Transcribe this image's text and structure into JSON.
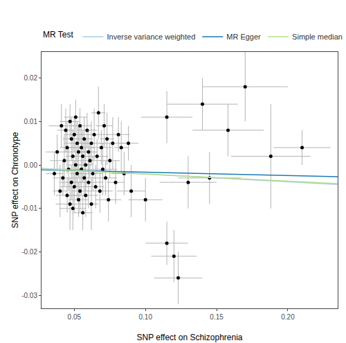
{
  "chart_data": {
    "type": "scatter",
    "x_label": "SNP effect on Schizophrenia",
    "y_label": "SNP effect on Chronotype",
    "legend_title": "MR Test",
    "legend": "top",
    "grid": false,
    "xlim": [
      0.027,
      0.235
    ],
    "ylim": [
      -0.033,
      0.026
    ],
    "xticks": [
      0.05,
      {
        "value": 0.1,
        "label": "0.10"
      },
      0.15,
      {
        "value": 0.2,
        "label": "0.20"
      }
    ],
    "yticks": [
      -0.03,
      -0.02,
      -0.01,
      {
        "value": 0,
        "label": "0.00"
      },
      0.01,
      0.02
    ],
    "series": [
      {
        "type": "scatter",
        "marker": "circle",
        "color": "#000000",
        "error_color": "#b3b3b3",
        "x": [
          0.036,
          0.038,
          0.04,
          0.041,
          0.042,
          0.043,
          0.044,
          0.045,
          0.045,
          0.046,
          0.047,
          0.047,
          0.048,
          0.048,
          0.049,
          0.049,
          0.05,
          0.05,
          0.051,
          0.051,
          0.052,
          0.052,
          0.053,
          0.053,
          0.054,
          0.054,
          0.055,
          0.055,
          0.056,
          0.056,
          0.057,
          0.057,
          0.058,
          0.058,
          0.059,
          0.06,
          0.06,
          0.061,
          0.062,
          0.062,
          0.063,
          0.064,
          0.065,
          0.066,
          0.067,
          0.068,
          0.069,
          0.07,
          0.071,
          0.072,
          0.073,
          0.074,
          0.075,
          0.077,
          0.079,
          0.081,
          0.083,
          0.085,
          0.088,
          0.09,
          0.1,
          0.115,
          0.115,
          0.12,
          0.123,
          0.13,
          0.14,
          0.145,
          0.158,
          0.17,
          0.188,
          0.21
        ],
        "values": [
          -0.002,
          0.003,
          -0.006,
          0.009,
          -0.003,
          0.001,
          0.008,
          -0.007,
          0.004,
          -0.001,
          0.01,
          -0.009,
          0.006,
          -0.004,
          0.002,
          -0.01,
          0.007,
          -0.005,
          0.0,
          0.011,
          -0.002,
          0.005,
          -0.008,
          0.003,
          -0.006,
          0.009,
          -0.001,
          0.004,
          -0.011,
          0.002,
          0.006,
          -0.003,
          0.0,
          -0.007,
          0.008,
          -0.004,
          0.003,
          0.001,
          -0.009,
          0.005,
          -0.002,
          0.007,
          -0.005,
          0.002,
          0.012,
          -0.006,
          0.004,
          -0.001,
          0.009,
          -0.003,
          0.006,
          -0.008,
          0.001,
          0.005,
          -0.004,
          0.007,
          0.004,
          -0.002,
          0.005,
          -0.006,
          -0.008,
          0.011,
          -0.018,
          -0.021,
          -0.026,
          -0.004,
          0.014,
          -0.003,
          0.008,
          0.018,
          0.002,
          0.004
        ],
        "x_error": [
          0.006,
          0.008,
          0.005,
          0.009,
          0.007,
          0.01,
          0.006,
          0.008,
          0.005,
          0.009,
          0.007,
          0.01,
          0.006,
          0.008,
          0.005,
          0.009,
          0.007,
          0.01,
          0.006,
          0.008,
          0.005,
          0.009,
          0.007,
          0.01,
          0.006,
          0.008,
          0.005,
          0.009,
          0.007,
          0.01,
          0.006,
          0.008,
          0.005,
          0.009,
          0.007,
          0.01,
          0.006,
          0.008,
          0.005,
          0.009,
          0.007,
          0.01,
          0.006,
          0.008,
          0.005,
          0.009,
          0.007,
          0.01,
          0.006,
          0.008,
          0.005,
          0.009,
          0.007,
          0.01,
          0.006,
          0.008,
          0.005,
          0.009,
          0.007,
          0.01,
          0.012,
          0.018,
          0.015,
          0.016,
          0.017,
          0.02,
          0.025,
          0.022,
          0.025,
          0.03,
          0.028,
          0.02
        ],
        "y_error": [
          0.005,
          0.004,
          0.006,
          0.005,
          0.004,
          0.006,
          0.005,
          0.004,
          0.006,
          0.005,
          0.004,
          0.006,
          0.005,
          0.004,
          0.006,
          0.005,
          0.004,
          0.006,
          0.005,
          0.004,
          0.006,
          0.005,
          0.004,
          0.006,
          0.005,
          0.004,
          0.006,
          0.005,
          0.004,
          0.006,
          0.005,
          0.004,
          0.006,
          0.005,
          0.004,
          0.006,
          0.005,
          0.004,
          0.006,
          0.005,
          0.004,
          0.006,
          0.005,
          0.004,
          0.006,
          0.005,
          0.004,
          0.006,
          0.005,
          0.004,
          0.006,
          0.005,
          0.004,
          0.006,
          0.005,
          0.004,
          0.006,
          0.005,
          0.004,
          0.006,
          0.005,
          0.006,
          0.005,
          0.006,
          0.006,
          0.006,
          0.006,
          0.006,
          0.006,
          0.008,
          0.012,
          0.004
        ]
      },
      {
        "type": "line",
        "name": "Inverse variance weighted",
        "color": "#a6cee3",
        "line_style": "solid",
        "x": [
          0.027,
          0.235
        ],
        "values": [
          -0.0008,
          -0.0045
        ]
      },
      {
        "type": "line",
        "name": "MR Egger",
        "color": "#1f78b4",
        "line_style": "solid",
        "x": [
          0.027,
          0.235
        ],
        "values": [
          -0.0011,
          -0.0027
        ]
      },
      {
        "type": "line",
        "name": "Simple median",
        "color": "#b2df8a",
        "line_style": "solid",
        "x": [
          0.027,
          0.235
        ],
        "values": [
          -0.0009,
          -0.0043
        ]
      }
    ]
  }
}
